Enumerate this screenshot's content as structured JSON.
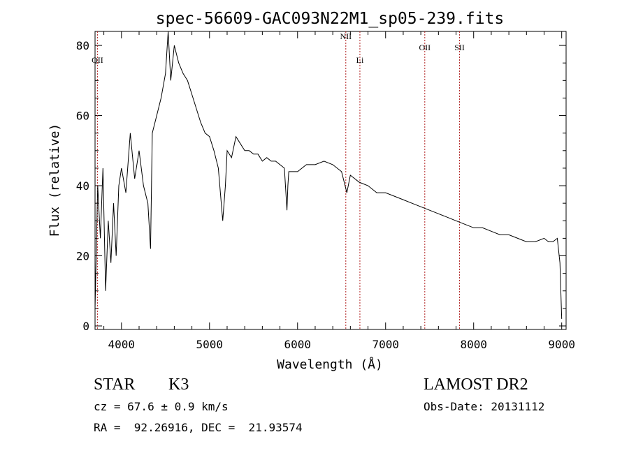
{
  "chart_data": {
    "type": "line",
    "title": "spec-56609-GAC093N22M1_sp05-239.fits",
    "xlabel": "Wavelength (Å)",
    "ylabel": "Flux (relative)",
    "xlim": [
      3700,
      9050
    ],
    "ylim": [
      -1,
      84
    ],
    "xticks": [
      4000,
      5000,
      6000,
      7000,
      8000,
      9000
    ],
    "yticks": [
      0,
      20,
      40,
      60,
      80
    ],
    "grid": false,
    "line_color": "#000000",
    "marker_color": "#b22222",
    "series": [
      {
        "x": [
          3700,
          3730,
          3760,
          3790,
          3820,
          3850,
          3880,
          3910,
          3940,
          3970,
          4000,
          4050,
          4100,
          4150,
          4200,
          4250,
          4300,
          4330,
          4350,
          4400,
          4450,
          4500,
          4530,
          4560,
          4600,
          4650,
          4700,
          4750,
          4800,
          4850,
          4900,
          4950,
          5000,
          5050,
          5100,
          5150,
          5180,
          5200,
          5250,
          5300,
          5350,
          5400,
          5450,
          5500,
          5550,
          5600,
          5650,
          5700,
          5750,
          5800,
          5850,
          5880,
          5890,
          5900,
          5950,
          6000,
          6100,
          6200,
          6300,
          6400,
          6500,
          6560,
          6600,
          6700,
          6800,
          6900,
          7000,
          7100,
          7200,
          7300,
          7400,
          7500,
          7600,
          7700,
          7800,
          7900,
          8000,
          8100,
          8200,
          8300,
          8400,
          8500,
          8600,
          8700,
          8800,
          8850,
          8900,
          8950,
          8980,
          9000
        ],
        "y": [
          5,
          40,
          25,
          45,
          10,
          30,
          18,
          35,
          20,
          40,
          45,
          38,
          55,
          42,
          50,
          40,
          35,
          22,
          55,
          60,
          65,
          72,
          84,
          70,
          80,
          75,
          72,
          70,
          66,
          62,
          58,
          55,
          54,
          50,
          45,
          30,
          40,
          50,
          48,
          54,
          52,
          50,
          50,
          49,
          49,
          47,
          48,
          47,
          47,
          46,
          45,
          33,
          40,
          44,
          44,
          44,
          46,
          46,
          47,
          46,
          44,
          38,
          43,
          41,
          40,
          38,
          38,
          37,
          36,
          35,
          34,
          33,
          32,
          31,
          30,
          29,
          28,
          28,
          27,
          26,
          26,
          25,
          24,
          24,
          25,
          24,
          24,
          25,
          18,
          2
        ]
      }
    ],
    "markers": [
      {
        "label": "OII",
        "x": 3727
      },
      {
        "label": "NII",
        "x": 6548
      },
      {
        "label": "Li",
        "x": 6708
      },
      {
        "label": "OII",
        "x": 7445
      },
      {
        "label": "SII",
        "x": 7840
      }
    ]
  },
  "info": {
    "class_label": "STAR",
    "subclass": "K3",
    "survey": "LAMOST DR2",
    "cz_line": "cz = 67.6 ± 0.9 km/s",
    "obs_date": "Obs-Date: 20131112",
    "coords": "RA =  92.26916, DEC =  21.93574"
  }
}
